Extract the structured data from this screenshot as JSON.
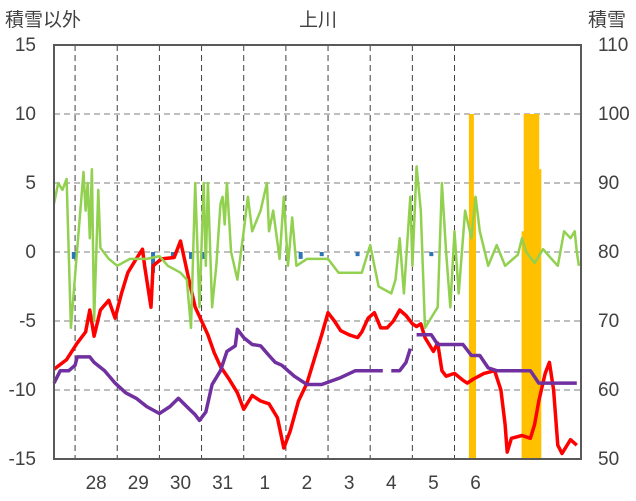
{
  "chart_data": {
    "type": "line",
    "title": "上川",
    "y_left_label": "積雪以外",
    "y_right_label": "積雪",
    "y_left_lim": [
      -15,
      15
    ],
    "y_left_ticks": [
      "15",
      "10",
      "5",
      "0",
      "-5",
      "-10",
      "-15"
    ],
    "y_right_lim": [
      50,
      110
    ],
    "y_right_ticks": [
      "110",
      "100",
      "90",
      "80",
      "70",
      "60",
      "50"
    ],
    "x_ticks": [
      "28",
      "29",
      "30",
      "31",
      "1",
      "2",
      "3",
      "4",
      "5",
      "6"
    ],
    "grid": true,
    "colors": {
      "red": "#ff0000",
      "purple": "#7030a0",
      "green": "#92d050",
      "orange": "#ffc000",
      "blue": "#2e75b6"
    },
    "series": [
      {
        "color": "red",
        "axis": "left",
        "points": [
          [
            0,
            -8.5
          ],
          [
            0.3,
            -7.8
          ],
          [
            0.55,
            -6.6
          ],
          [
            0.75,
            -5.8
          ],
          [
            0.85,
            -4.2
          ],
          [
            0.95,
            -6.1
          ],
          [
            1.1,
            -4.2
          ],
          [
            1.3,
            -3.5
          ],
          [
            1.45,
            -4.8
          ],
          [
            1.6,
            -3.0
          ],
          [
            1.75,
            -1.5
          ],
          [
            1.95,
            -0.5
          ],
          [
            2.1,
            0.2
          ],
          [
            2.15,
            -1.0
          ],
          [
            2.3,
            -4.0
          ],
          [
            2.35,
            -1.0
          ],
          [
            2.55,
            -0.5
          ],
          [
            2.85,
            -0.4
          ],
          [
            3.0,
            0.8
          ],
          [
            3.1,
            -0.6
          ],
          [
            3.2,
            -2.0
          ],
          [
            3.35,
            -4.0
          ],
          [
            3.5,
            -5.0
          ],
          [
            3.65,
            -6.0
          ],
          [
            3.8,
            -7.3
          ],
          [
            3.95,
            -8.3
          ],
          [
            4.15,
            -9.2
          ],
          [
            4.35,
            -10.2
          ],
          [
            4.5,
            -11.4
          ],
          [
            4.7,
            -10.4
          ],
          [
            4.9,
            -10.8
          ],
          [
            5.1,
            -11.0
          ],
          [
            5.3,
            -12.0
          ],
          [
            5.45,
            -14.2
          ],
          [
            5.6,
            -13.0
          ],
          [
            5.8,
            -10.8
          ],
          [
            6.0,
            -9.5
          ],
          [
            6.2,
            -7.5
          ],
          [
            6.35,
            -6.0
          ],
          [
            6.5,
            -4.4
          ],
          [
            6.65,
            -5.0
          ],
          [
            6.8,
            -5.7
          ],
          [
            7.0,
            -6.0
          ],
          [
            7.2,
            -6.2
          ],
          [
            7.3,
            -5.8
          ],
          [
            7.45,
            -4.8
          ],
          [
            7.6,
            -4.4
          ],
          [
            7.75,
            -5.5
          ],
          [
            7.9,
            -5.5
          ],
          [
            8.05,
            -5.0
          ],
          [
            8.2,
            -4.2
          ],
          [
            8.35,
            -4.6
          ],
          [
            8.5,
            -5.2
          ],
          [
            8.6,
            -5.4
          ],
          [
            8.7,
            -5.2
          ],
          [
            8.8,
            -6.2
          ],
          [
            9.0,
            -7.2
          ],
          [
            9.1,
            -6.6
          ],
          [
            9.2,
            -8.6
          ],
          [
            9.3,
            -9.0
          ],
          [
            9.5,
            -8.8
          ],
          [
            9.7,
            -9.3
          ],
          [
            9.8,
            -9.5
          ],
          [
            9.95,
            -9.2
          ],
          [
            10.2,
            -8.8
          ],
          [
            10.45,
            -8.6
          ],
          [
            10.6,
            -10.0
          ],
          [
            10.7,
            -12.5
          ],
          [
            10.75,
            -14.5
          ],
          [
            10.85,
            -13.5
          ],
          [
            11.1,
            -13.3
          ],
          [
            11.3,
            -13.5
          ],
          [
            11.4,
            -12.5
          ],
          [
            11.5,
            -10.8
          ],
          [
            11.65,
            -8.8
          ],
          [
            11.75,
            -8.0
          ],
          [
            11.85,
            -10.0
          ],
          [
            11.95,
            -14.0
          ],
          [
            12.05,
            -14.6
          ],
          [
            12.25,
            -13.6
          ],
          [
            12.4,
            -14.0
          ]
        ]
      },
      {
        "color": "purple",
        "axis": "left",
        "points": [
          [
            0,
            -9.5
          ],
          [
            0.15,
            -8.6
          ],
          [
            0.35,
            -8.6
          ],
          [
            0.5,
            -8.2
          ],
          [
            0.55,
            -7.6
          ],
          [
            0.85,
            -7.6
          ],
          [
            0.95,
            -8.0
          ],
          [
            1.2,
            -8.6
          ],
          [
            1.45,
            -9.5
          ],
          [
            1.7,
            -10.2
          ],
          [
            1.95,
            -10.6
          ],
          [
            2.2,
            -11.2
          ],
          [
            2.5,
            -11.7
          ],
          [
            2.75,
            -11.2
          ],
          [
            2.95,
            -10.6
          ],
          [
            3.15,
            -11.2
          ],
          [
            3.35,
            -11.8
          ],
          [
            3.45,
            -12.2
          ],
          [
            3.6,
            -11.6
          ],
          [
            3.75,
            -9.6
          ],
          [
            3.95,
            -8.6
          ],
          [
            4.1,
            -7.2
          ],
          [
            4.3,
            -6.8
          ],
          [
            4.35,
            -5.6
          ],
          [
            4.5,
            -6.2
          ],
          [
            4.7,
            -6.7
          ],
          [
            4.9,
            -6.8
          ],
          [
            5.1,
            -7.5
          ],
          [
            5.25,
            -8.0
          ],
          [
            5.4,
            -8.2
          ],
          [
            5.7,
            -9.0
          ],
          [
            6.0,
            -9.6
          ],
          [
            6.35,
            -9.6
          ],
          [
            6.8,
            -9.1
          ],
          [
            7.15,
            -8.6
          ],
          [
            7.4,
            -8.6
          ],
          [
            7.8,
            -8.6
          ]
        ]
      },
      {
        "color": "purple",
        "axis": "left",
        "points": [
          [
            8.0,
            -8.6
          ],
          [
            8.2,
            -8.6
          ],
          [
            8.35,
            -8.0
          ],
          [
            8.45,
            -7.0
          ]
        ]
      },
      {
        "color": "purple",
        "axis": "left",
        "points": [
          [
            8.6,
            -6.0
          ],
          [
            8.95,
            -6.0
          ],
          [
            9.1,
            -6.7
          ],
          [
            9.7,
            -6.7
          ],
          [
            9.9,
            -7.5
          ],
          [
            10.1,
            -7.5
          ],
          [
            10.3,
            -8.4
          ],
          [
            10.5,
            -8.6
          ],
          [
            11.3,
            -8.6
          ],
          [
            11.5,
            -9.5
          ],
          [
            12.4,
            -9.5
          ]
        ]
      },
      {
        "color": "green",
        "axis": "left",
        "points": [
          [
            0,
            3.5
          ],
          [
            0.1,
            5.0
          ],
          [
            0.2,
            4.5
          ],
          [
            0.3,
            5.3
          ],
          [
            0.4,
            -5.5
          ],
          [
            0.55,
            0.2
          ],
          [
            0.7,
            5.8
          ],
          [
            0.75,
            3.0
          ],
          [
            0.8,
            5.0
          ],
          [
            0.85,
            1.0
          ],
          [
            0.9,
            6.0
          ],
          [
            0.95,
            -5.0
          ],
          [
            1.05,
            4.5
          ],
          [
            1.1,
            0.3
          ],
          [
            1.3,
            -0.5
          ],
          [
            1.5,
            -1.0
          ],
          [
            1.8,
            -0.5
          ],
          [
            2.2,
            -0.5
          ],
          [
            2.5,
            -0.3
          ],
          [
            2.7,
            -1.0
          ],
          [
            3.0,
            -1.5
          ],
          [
            3.15,
            -2.0
          ],
          [
            3.25,
            -5.5
          ],
          [
            3.35,
            5.0
          ],
          [
            3.45,
            -4.0
          ],
          [
            3.55,
            5.0
          ],
          [
            3.6,
            -1.0
          ],
          [
            3.65,
            5.0
          ],
          [
            3.75,
            -4.0
          ],
          [
            3.85,
            -1.0
          ],
          [
            3.95,
            3.5
          ],
          [
            4.0,
            4.0
          ],
          [
            4.05,
            2.0
          ],
          [
            4.1,
            5.0
          ],
          [
            4.2,
            0.0
          ],
          [
            4.35,
            -2.0
          ],
          [
            4.5,
            1.5
          ],
          [
            4.6,
            4.0
          ],
          [
            4.7,
            1.5
          ],
          [
            4.9,
            3.0
          ],
          [
            5.05,
            5.0
          ],
          [
            5.1,
            1.5
          ],
          [
            5.2,
            3.0
          ],
          [
            5.35,
            -0.5
          ],
          [
            5.45,
            4.0
          ],
          [
            5.55,
            -1.0
          ],
          [
            5.65,
            2.5
          ],
          [
            5.75,
            -1.0
          ],
          [
            6.0,
            -0.5
          ],
          [
            6.5,
            -0.5
          ],
          [
            6.75,
            -1.5
          ],
          [
            7.0,
            -1.5
          ],
          [
            7.3,
            -1.5
          ],
          [
            7.5,
            0.5
          ],
          [
            7.7,
            -2.5
          ],
          [
            8.0,
            -3.0
          ],
          [
            8.1,
            -2.0
          ],
          [
            8.2,
            1.0
          ],
          [
            8.3,
            -3.0
          ],
          [
            8.45,
            4.0
          ],
          [
            8.5,
            -1.0
          ],
          [
            8.6,
            6.2
          ],
          [
            8.7,
            3.0
          ],
          [
            8.8,
            -5.5
          ],
          [
            8.9,
            -5.0
          ],
          [
            9.1,
            -4.0
          ],
          [
            9.2,
            5.0
          ],
          [
            9.3,
            0.0
          ],
          [
            9.4,
            -4.0
          ],
          [
            9.5,
            1.5
          ],
          [
            9.6,
            -3.0
          ],
          [
            9.75,
            3.0
          ],
          [
            9.9,
            1.0
          ],
          [
            10.0,
            4.0
          ],
          [
            10.1,
            1.5
          ],
          [
            10.3,
            -1.0
          ],
          [
            10.5,
            0.5
          ],
          [
            10.7,
            -1.0
          ],
          [
            11.0,
            -0.2
          ],
          [
            11.1,
            1.0
          ],
          [
            11.2,
            0.0
          ],
          [
            11.4,
            -0.8
          ],
          [
            11.6,
            0.2
          ],
          [
            11.8,
            -0.5
          ],
          [
            11.95,
            -1.0
          ],
          [
            12.1,
            1.5
          ],
          [
            12.25,
            1.0
          ],
          [
            12.35,
            1.5
          ],
          [
            12.4,
            0.0
          ],
          [
            12.45,
            -1.0
          ]
        ]
      }
    ],
    "bars": [
      {
        "color": "orange",
        "axis": "right",
        "x": [
          9.9,
          9.92,
          9.95
        ],
        "values": [
          100,
          85,
          88
        ]
      },
      {
        "color": "orange",
        "axis": "right",
        "x": [
          11.15,
          11.2,
          11.25,
          11.3,
          11.35,
          11.4,
          11.45,
          11.5
        ],
        "values": [
          83,
          100,
          100,
          100,
          100,
          100,
          100,
          92
        ]
      },
      {
        "color": "blue",
        "axis": "left",
        "x": [
          0.47,
          2.35,
          2.82,
          3.25,
          3.55,
          5.85,
          6.35,
          7.2,
          8.95
        ],
        "values": [
          -0.5,
          -1.5,
          -0.5,
          -0.5,
          -0.5,
          -0.5,
          -0.3,
          -0.3,
          -0.3
        ]
      }
    ]
  }
}
